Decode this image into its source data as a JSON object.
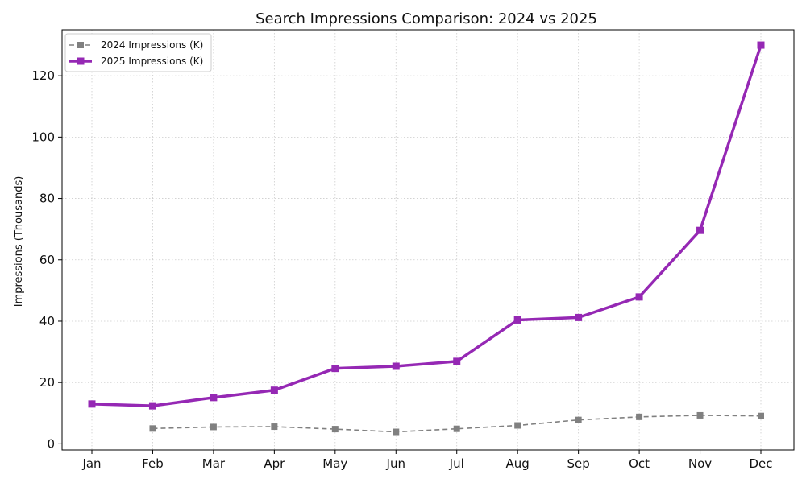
{
  "chart_data": {
    "type": "line",
    "title": "Search Impressions Comparison: 2024 vs 2025",
    "xlabel": "",
    "ylabel": "Impressions (Thousands)",
    "categories": [
      "Jan",
      "Feb",
      "Mar",
      "Apr",
      "May",
      "Jun",
      "Jul",
      "Aug",
      "Sep",
      "Oct",
      "Nov",
      "Dec"
    ],
    "ylim": [
      -2,
      135
    ],
    "yticks": [
      0,
      20,
      40,
      60,
      80,
      100,
      120
    ],
    "grid": true,
    "legend_position": "top-left",
    "series": [
      {
        "name": "2024 Impressions (K)",
        "color": "#808080",
        "style": "dashed",
        "marker": "square",
        "values": [
          null,
          5.0,
          5.5,
          5.6,
          4.8,
          3.9,
          4.9,
          6.0,
          7.8,
          8.8,
          9.3,
          9.1
        ]
      },
      {
        "name": "2025 Impressions (K)",
        "color": "#9528b4",
        "style": "solid",
        "marker": "square",
        "values": [
          13.0,
          12.4,
          15.1,
          17.5,
          24.6,
          25.3,
          26.9,
          40.4,
          41.2,
          47.9,
          69.6,
          130.0
        ]
      }
    ]
  }
}
